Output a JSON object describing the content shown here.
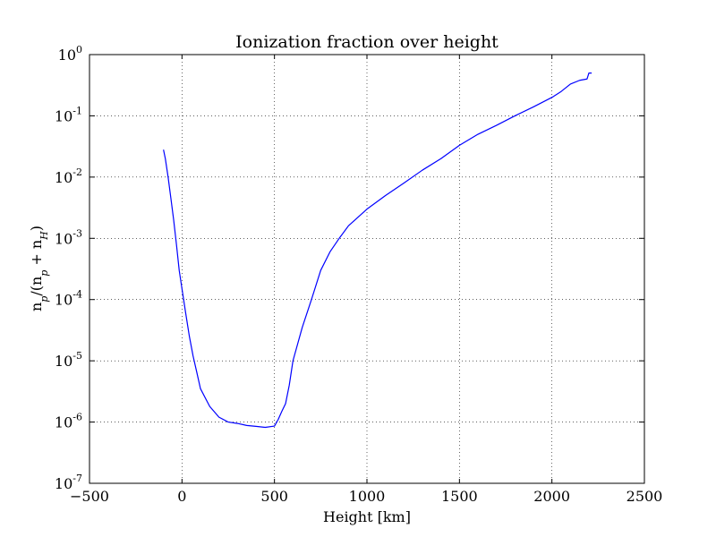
{
  "chart_data": {
    "type": "line",
    "title": "Ionization fraction over height",
    "xlabel": "Height [km]",
    "ylabel": {
      "n": "n",
      "p": "p",
      "slash": "/(n",
      "plus": " + n",
      "H": "H",
      "close": ")"
    },
    "xlim": [
      -500,
      2500
    ],
    "ylim": [
      1e-07,
      1
    ],
    "yscale": "log",
    "grid": true,
    "x_ticks": [
      {
        "value": -500,
        "label": "−500"
      },
      {
        "value": 0,
        "label": "0"
      },
      {
        "value": 500,
        "label": "500"
      },
      {
        "value": 1000,
        "label": "1000"
      },
      {
        "value": 1500,
        "label": "1500"
      },
      {
        "value": 2000,
        "label": "2000"
      },
      {
        "value": 2500,
        "label": "2500"
      }
    ],
    "y_ticks": [
      {
        "value": 1.0,
        "base": "10",
        "exp": "0"
      },
      {
        "value": 0.1,
        "base": "10",
        "exp": "-1"
      },
      {
        "value": 0.01,
        "base": "10",
        "exp": "-2"
      },
      {
        "value": 0.001,
        "base": "10",
        "exp": "-3"
      },
      {
        "value": 0.0001,
        "base": "10",
        "exp": "-4"
      },
      {
        "value": 1e-05,
        "base": "10",
        "exp": "-5"
      },
      {
        "value": 1e-06,
        "base": "10",
        "exp": "-6"
      },
      {
        "value": 1e-07,
        "base": "10",
        "exp": "-7"
      }
    ],
    "series": [
      {
        "color": "#0000ff",
        "points": [
          [
            -100,
            0.028
          ],
          [
            -90,
            0.02
          ],
          [
            -75,
            0.01
          ],
          [
            -60,
            0.0045
          ],
          [
            -45,
            0.002
          ],
          [
            -30,
            0.0008
          ],
          [
            -15,
            0.0003
          ],
          [
            0,
            0.00015
          ],
          [
            20,
            6e-05
          ],
          [
            40,
            2.5e-05
          ],
          [
            60,
            1.2e-05
          ],
          [
            80,
            6.5e-06
          ],
          [
            100,
            3.5e-06
          ],
          [
            150,
            1.8e-06
          ],
          [
            200,
            1.2e-06
          ],
          [
            250,
            1e-06
          ],
          [
            300,
            9.5e-07
          ],
          [
            350,
            8.8e-07
          ],
          [
            400,
            8.5e-07
          ],
          [
            450,
            8.2e-07
          ],
          [
            500,
            8.6e-07
          ],
          [
            520,
            1.1e-06
          ],
          [
            540,
            1.5e-06
          ],
          [
            560,
            2e-06
          ],
          [
            580,
            4e-06
          ],
          [
            600,
            1e-05
          ],
          [
            650,
            3.5e-05
          ],
          [
            700,
            0.0001
          ],
          [
            750,
            0.0003
          ],
          [
            800,
            0.0006
          ],
          [
            850,
            0.001
          ],
          [
            900,
            0.0016
          ],
          [
            1000,
            0.003
          ],
          [
            1100,
            0.005
          ],
          [
            1200,
            0.008
          ],
          [
            1300,
            0.013
          ],
          [
            1400,
            0.02
          ],
          [
            1500,
            0.033
          ],
          [
            1600,
            0.05
          ],
          [
            1700,
            0.07
          ],
          [
            1800,
            0.1
          ],
          [
            1900,
            0.14
          ],
          [
            2000,
            0.2
          ],
          [
            2050,
            0.25
          ],
          [
            2100,
            0.33
          ],
          [
            2150,
            0.38
          ],
          [
            2190,
            0.4
          ],
          [
            2200,
            0.5
          ],
          [
            2215,
            0.5
          ]
        ]
      }
    ]
  }
}
